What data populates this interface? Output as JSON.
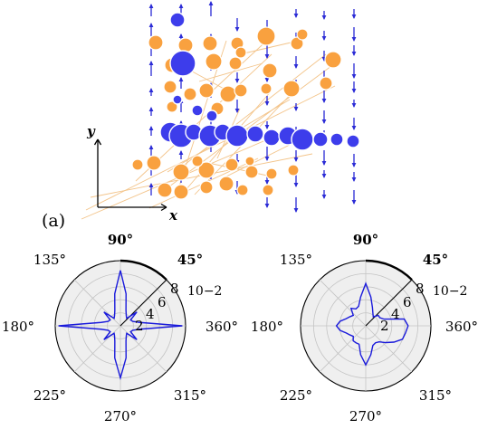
{
  "panel_label": "(a)",
  "axis_labels": {
    "x": "x",
    "y": "y"
  },
  "colors": {
    "orange_particle": "#F9A13F",
    "blue_particle": "#3D3DEB",
    "arrow": "#2B2BD6",
    "thread": "#F3C48A",
    "polar_fill": "#EFEFEF",
    "polar_grid": "#C4C4C4",
    "polar_curve": "#1A1ADB"
  },
  "polar_plots": [
    {
      "angle_ticks": [
        "90°",
        "45°",
        "135°",
        "180°",
        "360°",
        "225°",
        "270°",
        "315°"
      ],
      "radial_ticks": [
        "2",
        "4",
        "6",
        "8"
      ],
      "radial_scale": "10−2"
    },
    {
      "angle_ticks": [
        "90°",
        "45°",
        "135°",
        "180°",
        "360°",
        "225°",
        "270°",
        "315°"
      ],
      "radial_ticks": [
        "2",
        "4",
        "6",
        "8"
      ],
      "radial_scale": "10−2"
    }
  ],
  "chart_data": [
    {
      "type": "line",
      "projection": "polar",
      "theta_unit": "degrees",
      "r_scale": "×10^-2",
      "rlim": [
        0,
        10
      ],
      "rticks": [
        2,
        4,
        6,
        8
      ],
      "theta": [
        0,
        10,
        20,
        30,
        40,
        50,
        60,
        70,
        80,
        90,
        100,
        110,
        120,
        130,
        140,
        150,
        160,
        170,
        180,
        190,
        200,
        210,
        220,
        230,
        240,
        250,
        260,
        270,
        280,
        290,
        300,
        310,
        320,
        330,
        340,
        350
      ],
      "r": [
        9.5,
        3.0,
        2.0,
        1.8,
        3.3,
        1.5,
        1.8,
        2.5,
        5.0,
        8.5,
        5.0,
        2.5,
        1.8,
        1.5,
        3.3,
        1.8,
        2.0,
        3.0,
        9.5,
        3.0,
        2.0,
        1.8,
        3.3,
        1.5,
        1.8,
        2.5,
        5.0,
        8.0,
        5.0,
        2.5,
        1.8,
        1.5,
        3.3,
        1.8,
        2.0,
        3.0
      ]
    },
    {
      "type": "line",
      "projection": "polar",
      "theta_unit": "degrees",
      "r_scale": "×10^-2",
      "rlim": [
        0,
        10
      ],
      "rticks": [
        2,
        4,
        6,
        8
      ],
      "theta": [
        0,
        10,
        20,
        30,
        40,
        50,
        60,
        70,
        80,
        90,
        100,
        110,
        120,
        130,
        140,
        150,
        160,
        170,
        180,
        190,
        200,
        210,
        220,
        230,
        240,
        250,
        260,
        270,
        280,
        290,
        300,
        310,
        320,
        330,
        340,
        350
      ],
      "r": [
        6.5,
        6.0,
        3.0,
        2.5,
        2.5,
        1.8,
        2.2,
        3.0,
        4.5,
        6.5,
        4.5,
        3.2,
        3.0,
        3.5,
        2.5,
        2.8,
        3.2,
        4.0,
        4.5,
        4.0,
        3.2,
        2.8,
        2.5,
        3.0,
        3.0,
        3.0,
        4.5,
        6.0,
        4.5,
        3.2,
        3.0,
        3.2,
        4.0,
        5.0,
        6.0,
        6.2
      ]
    }
  ]
}
